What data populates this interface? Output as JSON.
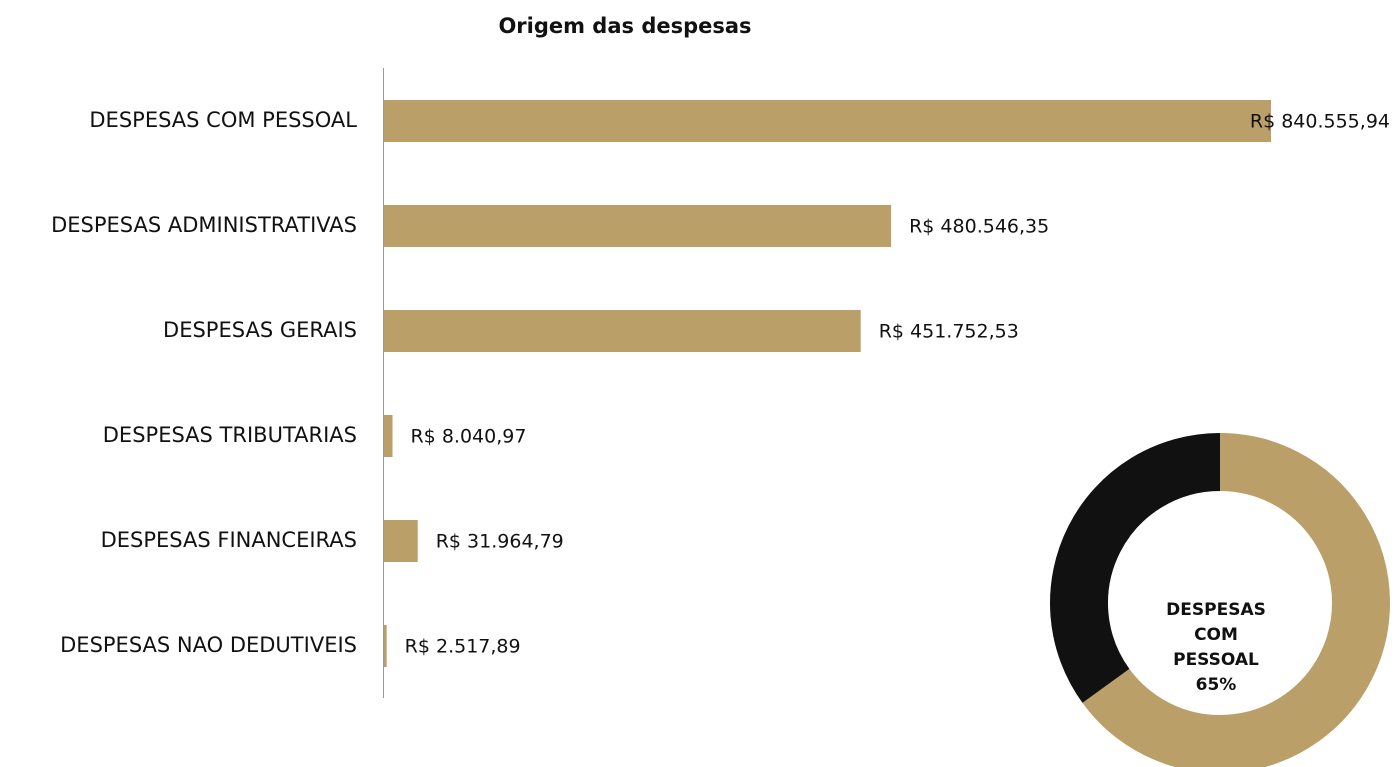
{
  "chart_data": [
    {
      "type": "bar",
      "title": "Origem das despesas",
      "categories": [
        "DESPESAS COM PESSOAL",
        "DESPESAS ADMINISTRATIVAS",
        "DESPESAS GERAIS",
        "DESPESAS TRIBUTARIAS",
        "DESPESAS FINANCEIRAS",
        "DESPESAS NAO DEDUTIVEIS"
      ],
      "values": [
        840555.94,
        480546.35,
        451752.53,
        8040.97,
        31964.79,
        2517.89
      ],
      "value_labels": [
        "R$ 840.555,94",
        "R$ 480.546,35",
        "R$ 451.752,53",
        "R$ 8.040,97",
        "R$ 31.964,79",
        "R$ 2.517,89"
      ],
      "color": "#bb9f68"
    },
    {
      "type": "pie",
      "categories": [
        "DESPESAS COM PESSOAL",
        null
      ],
      "values": [
        65,
        35
      ],
      "value_labels": [
        "65%",
        null
      ],
      "colors": [
        "#bb9f68",
        "#111111"
      ]
    }
  ]
}
